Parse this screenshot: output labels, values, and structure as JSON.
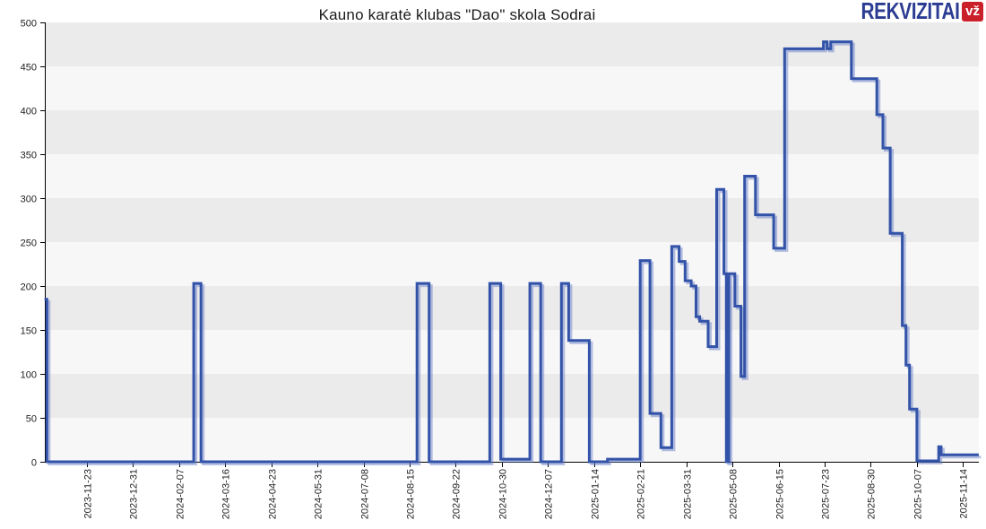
{
  "header": {
    "title": "Kauno karatė klubas \"Dao\" skola Sodrai",
    "logo": {
      "brand": "REKVIZITAI",
      "badge": "vž",
      "brand_color": "#2b3c92",
      "badge_bg": "#c9202a",
      "badge_fg": "#ffffff"
    }
  },
  "chart_data": {
    "type": "line",
    "subtype": "step-after",
    "title": "Kauno karatė klubas \"Dao\" skola Sodrai",
    "xlabel": "",
    "ylabel": "",
    "ylim": [
      0,
      500
    ],
    "y_ticks": [
      0,
      50,
      100,
      150,
      200,
      250,
      300,
      350,
      400,
      450,
      500
    ],
    "x_tick_labels": [
      "2023-11-23",
      "2023-12-31",
      "2024-02-07",
      "2024-03-16",
      "2024-04-23",
      "2024-05-31",
      "2024-07-08",
      "2024-08-15",
      "2024-09-22",
      "2024-10-30",
      "2024-12-07",
      "2025-01-14",
      "2025-02-21",
      "2025-03-31",
      "2025-05-08",
      "2025-06-15",
      "2025-07-23",
      "2025-08-30",
      "2025-10-07",
      "2025-11-14"
    ],
    "x_tick_interval_days": 38,
    "grid": "alternating horizontal 50-unit bands, no vertical gridlines",
    "legend": "none",
    "line_color": "#3253a8",
    "line_shadow_color": "rgba(90,115,195,0.45)",
    "band_colors": [
      "#f7f7f7",
      "#ebebeb"
    ],
    "axis_color": "#000000",
    "series": [
      {
        "name": "Skola Sodrai",
        "points": [
          [
            "2023-10-19",
            185
          ],
          [
            "2023-10-21",
            0
          ],
          [
            "2024-02-19",
            203
          ],
          [
            "2024-02-25",
            0
          ],
          [
            "2024-08-21",
            203
          ],
          [
            "2024-08-31",
            0
          ],
          [
            "2024-10-20",
            203
          ],
          [
            "2024-10-29",
            3
          ],
          [
            "2024-11-22",
            203
          ],
          [
            "2024-12-01",
            0
          ],
          [
            "2024-12-18",
            203
          ],
          [
            "2024-12-24",
            138
          ],
          [
            "2025-01-10",
            0
          ],
          [
            "2025-01-25",
            3
          ],
          [
            "2025-02-21",
            229
          ],
          [
            "2025-03-01",
            55
          ],
          [
            "2025-03-10",
            16
          ],
          [
            "2025-03-19",
            245
          ],
          [
            "2025-03-25",
            228
          ],
          [
            "2025-03-30",
            206
          ],
          [
            "2025-04-04",
            200
          ],
          [
            "2025-04-08",
            165
          ],
          [
            "2025-04-11",
            160
          ],
          [
            "2025-04-18",
            131
          ],
          [
            "2025-04-25",
            310
          ],
          [
            "2025-05-01",
            214
          ],
          [
            "2025-05-03",
            0
          ],
          [
            "2025-05-05",
            214
          ],
          [
            "2025-05-10",
            177
          ],
          [
            "2025-05-15",
            97
          ],
          [
            "2025-05-18",
            325
          ],
          [
            "2025-05-27",
            281
          ],
          [
            "2025-06-11",
            243
          ],
          [
            "2025-06-20",
            470
          ],
          [
            "2025-07-22",
            478
          ],
          [
            "2025-07-25",
            470
          ],
          [
            "2025-07-28",
            478
          ],
          [
            "2025-08-14",
            436
          ],
          [
            "2025-09-04",
            395
          ],
          [
            "2025-09-09",
            357
          ],
          [
            "2025-09-15",
            260
          ],
          [
            "2025-09-25",
            155
          ],
          [
            "2025-09-28",
            110
          ],
          [
            "2025-10-01",
            60
          ],
          [
            "2025-10-07",
            1
          ],
          [
            "2025-10-25",
            17
          ],
          [
            "2025-10-27",
            8
          ],
          [
            "2025-11-27",
            8
          ]
        ]
      }
    ]
  }
}
